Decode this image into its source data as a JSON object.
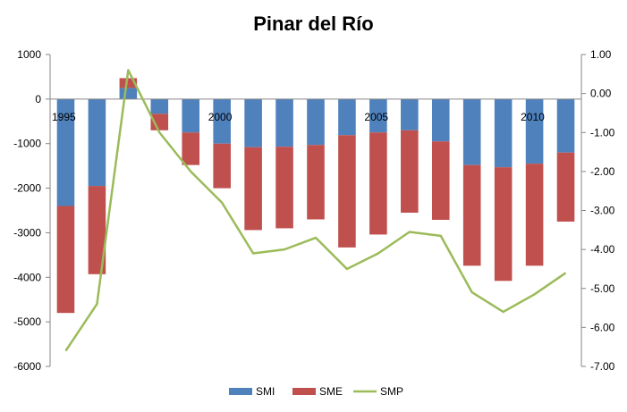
{
  "chart_data": {
    "type": "bar",
    "title": "Pinar del Río",
    "stacked": true,
    "categories": [
      "1995",
      "1996",
      "1997",
      "1998",
      "1999",
      "2000",
      "2001",
      "2002",
      "2003",
      "2004",
      "2005",
      "2006",
      "2007",
      "2008",
      "2009",
      "2010",
      "2011"
    ],
    "x_tick_labels": [
      "1995",
      "",
      "",
      "",
      "",
      "2000",
      "",
      "",
      "",
      "",
      "2005",
      "",
      "",
      "",
      "",
      "2010",
      ""
    ],
    "series": [
      {
        "name": "SMI",
        "type": "bar",
        "axis": "left",
        "color": "#4F81BD",
        "values": [
          -2400,
          -1950,
          250,
          -330,
          -750,
          -1000,
          -1080,
          -1070,
          -1030,
          -810,
          -750,
          -700,
          -950,
          -1480,
          -1530,
          -1450,
          -1200
        ]
      },
      {
        "name": "SME",
        "type": "bar",
        "axis": "left",
        "color": "#C0504D",
        "values": [
          -2400,
          -1980,
          220,
          -370,
          -730,
          -1000,
          -1860,
          -1830,
          -1670,
          -2520,
          -2290,
          -1850,
          -1760,
          -2260,
          -2550,
          -2290,
          -1550
        ]
      },
      {
        "name": "SMP",
        "type": "line",
        "axis": "right",
        "color": "#9BBB59",
        "values": [
          -6.6,
          -5.4,
          0.6,
          -1.0,
          -2.0,
          -2.8,
          -4.1,
          -4.0,
          -3.7,
          -4.5,
          -4.1,
          -3.55,
          -3.65,
          -5.1,
          -5.6,
          -5.15,
          -4.6
        ]
      }
    ],
    "y_left": {
      "min": -6000,
      "max": 1000,
      "step": 1000,
      "ticks": [
        "1000",
        "0",
        "-1000",
        "-2000",
        "-3000",
        "-4000",
        "-5000",
        "-6000"
      ]
    },
    "y_right": {
      "min": -7,
      "max": 1,
      "step": 1,
      "ticks": [
        "1.00",
        "0.00",
        "-1.00",
        "-2.00",
        "-3.00",
        "-4.00",
        "-5.00",
        "-6.00",
        "-7.00"
      ]
    },
    "grid": false,
    "legend": {
      "position": "bottom",
      "entries": [
        "SMI",
        "SME",
        "SMP"
      ]
    }
  }
}
